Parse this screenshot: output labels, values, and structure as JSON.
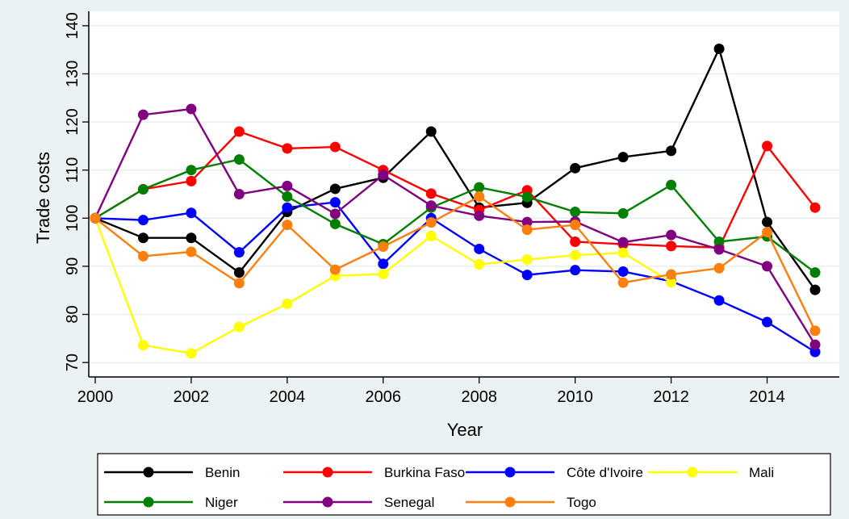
{
  "chart_data": {
    "type": "line",
    "title": "",
    "xlabel": "Year",
    "ylabel": "Trade costs",
    "xlim": [
      2000,
      2015
    ],
    "ylim": [
      67,
      143
    ],
    "x_ticks": [
      "2000",
      "2002",
      "2004",
      "2006",
      "2008",
      "2010",
      "2012",
      "2014"
    ],
    "y_ticks": [
      "70",
      "80",
      "90",
      "100",
      "110",
      "120",
      "130",
      "140"
    ],
    "grid": true,
    "legend_position": "bottom",
    "x": [
      2000,
      2001,
      2002,
      2003,
      2004,
      2005,
      2006,
      2007,
      2008,
      2009,
      2010,
      2011,
      2012,
      2013,
      2014,
      2015
    ],
    "series": [
      {
        "name": "Benin",
        "color": "#000000",
        "values": [
          100,
          95.9,
          95.9,
          88.7,
          101.3,
          106.1,
          108.4,
          118.0,
          102.2,
          103.2,
          110.4,
          112.7,
          114.0,
          135.2,
          99.2,
          85.1
        ]
      },
      {
        "name": "Burkina Faso",
        "color": "#ff0000",
        "values": [
          100,
          106.0,
          107.7,
          118.0,
          114.5,
          114.8,
          110.0,
          105.1,
          101.7,
          105.8,
          95.1,
          94.6,
          94.2,
          93.9,
          115.0,
          102.2
        ]
      },
      {
        "name": "Côte d'Ivoire",
        "color": "#0000ff",
        "values": [
          100,
          99.6,
          101.1,
          92.9,
          102.2,
          103.3,
          90.5,
          100.0,
          93.6,
          88.2,
          89.2,
          88.9,
          86.9,
          82.9,
          78.4,
          72.2
        ]
      },
      {
        "name": "Mali",
        "color": "#ffff00",
        "values": [
          100,
          73.6,
          71.9,
          77.4,
          82.2,
          88.0,
          88.4,
          96.3,
          90.4,
          91.4,
          92.3,
          92.8,
          86.7,
          null,
          null,
          null
        ]
      },
      {
        "name": "Niger",
        "color": "#007f00",
        "values": [
          100,
          106.0,
          110.0,
          112.2,
          104.5,
          98.8,
          94.6,
          102.2,
          106.4,
          104.4,
          101.3,
          101.0,
          106.9,
          95.1,
          96.2,
          88.7
        ]
      },
      {
        "name": "Senegal",
        "color": "#800080",
        "values": [
          100,
          121.5,
          122.7,
          105.0,
          106.7,
          100.9,
          109.0,
          102.6,
          100.5,
          99.2,
          99.3,
          95.0,
          96.5,
          93.5,
          90.0,
          73.7
        ]
      },
      {
        "name": "Togo",
        "color": "#ff7f0e",
        "values": [
          100,
          92.1,
          93.0,
          86.5,
          98.6,
          89.3,
          94.1,
          99.1,
          104.5,
          97.6,
          98.6,
          86.6,
          88.3,
          89.6,
          97.1,
          76.6
        ]
      }
    ]
  }
}
